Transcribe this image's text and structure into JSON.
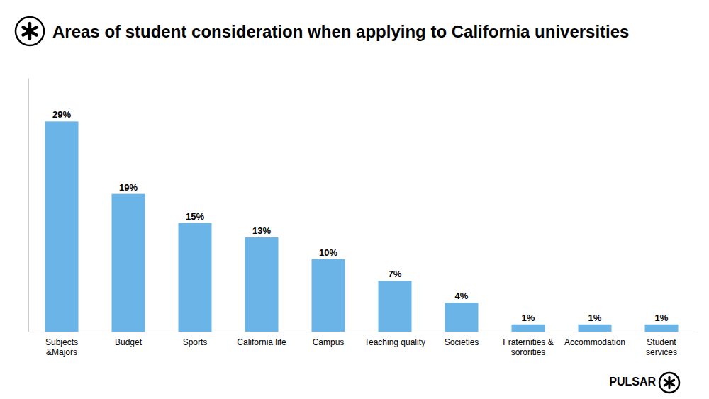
{
  "chart_data": {
    "type": "bar",
    "title": "Areas of student consideration when applying to California universities",
    "categories": [
      "Subjects &Majors",
      "Budget",
      "Sports",
      "California life",
      "Campus",
      "Teaching quality",
      "Societies",
      "Fraternities &\nsororities",
      "Accommodation",
      "Student services"
    ],
    "values": [
      29,
      19,
      15,
      13,
      10,
      7,
      4,
      1,
      1,
      1
    ],
    "value_labels": [
      "29%",
      "19%",
      "15%",
      "13%",
      "10%",
      "7%",
      "4%",
      "1%",
      "1%",
      "1%"
    ],
    "color": "#6ab4e8",
    "ylim": [
      0,
      35
    ],
    "data_labels": true,
    "tick_labels": "x",
    "grid": false,
    "annotations": [
      "PULSAR"
    ]
  }
}
